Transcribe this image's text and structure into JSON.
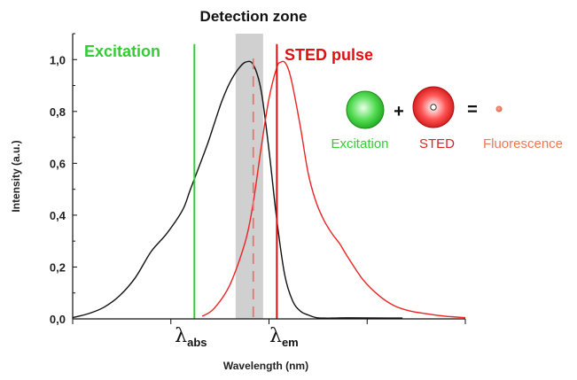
{
  "chart_data": {
    "type": "line",
    "title": "Detection zone",
    "xlabel": "Wavelength (nm)",
    "ylabel": "Intensity (a.u.)",
    "ylim": [
      0,
      1.1
    ],
    "xlim": [
      0,
      100
    ],
    "yticks": [
      "0,0",
      "0,2",
      "0,4",
      "0,6",
      "0,8",
      "1,0"
    ],
    "ytick_values": [
      0,
      0.2,
      0.4,
      0.6,
      0.8,
      1.0
    ],
    "grid": false,
    "series": [
      {
        "color": "#111111",
        "x": [
          0,
          4,
          8,
          12,
          16,
          20,
          24,
          28,
          30,
          34,
          36,
          38,
          40,
          42,
          44,
          46,
          48,
          50,
          52,
          54,
          56,
          58,
          60,
          62,
          64,
          66,
          70,
          80,
          84
        ],
        "y": [
          0.005,
          0.02,
          0.045,
          0.09,
          0.16,
          0.26,
          0.33,
          0.42,
          0.5,
          0.66,
          0.75,
          0.84,
          0.91,
          0.96,
          0.99,
          0.98,
          0.88,
          0.65,
          0.38,
          0.17,
          0.07,
          0.03,
          0.015,
          0.005,
          0.003,
          0.003,
          0.004,
          0.003,
          0.003
        ]
      },
      {
        "color": "#ee2222",
        "x": [
          33,
          36,
          40,
          44,
          46,
          48,
          50,
          52,
          53,
          54,
          55,
          56,
          58,
          60,
          62,
          64,
          66,
          68,
          70,
          74,
          78,
          82,
          86,
          90,
          95,
          100
        ],
        "y": [
          0.01,
          0.04,
          0.13,
          0.3,
          0.45,
          0.66,
          0.85,
          0.97,
          0.99,
          0.99,
          0.96,
          0.9,
          0.74,
          0.56,
          0.45,
          0.38,
          0.33,
          0.29,
          0.24,
          0.15,
          0.09,
          0.05,
          0.03,
          0.02,
          0.01,
          0.005
        ]
      }
    ],
    "vlines": [
      {
        "name": "Excitation",
        "x": 31,
        "color": "#33cc33",
        "style": "solid"
      },
      {
        "name": "STED pulse",
        "x": 52,
        "color": "#dd1111",
        "style": "solid"
      },
      {
        "x": 46,
        "color": "#e07777",
        "style": "dashed"
      }
    ],
    "detection_band": {
      "x_from": 41.5,
      "x_to": 48.5,
      "color": "#c8c8c8"
    },
    "xticks": [
      {
        "symbol": "λ",
        "sub": "abs",
        "x": 31
      },
      {
        "symbol": "λ",
        "sub": "em",
        "x": 52
      }
    ]
  },
  "legend": {
    "excitation": {
      "label": "Excitation",
      "color": "#33cc33"
    },
    "plus": "+",
    "sted": {
      "label": "STED",
      "color": "#dd2222"
    },
    "equals": "=",
    "fluorescence": {
      "label": "Fluorescence",
      "color": "#ee7755"
    }
  }
}
